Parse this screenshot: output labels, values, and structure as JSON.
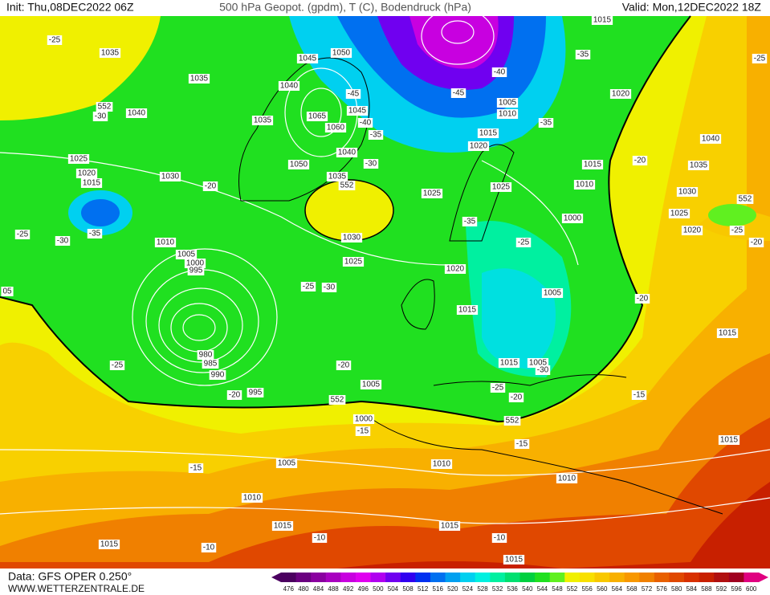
{
  "header": {
    "init": "Init: Thu,08DEC2022 06Z",
    "title": "500 hPa Geopot. (gpdm), T (C), Bodendruck (hPa)",
    "valid": "Valid: Mon,12DEC2022 18Z"
  },
  "footer": {
    "data": "Data: GFS OPER 0.250°",
    "site": "WWW.WETTERZENTRALE.DE"
  },
  "colorbar": {
    "labels": [
      476,
      480,
      484,
      488,
      492,
      496,
      500,
      504,
      508,
      512,
      516,
      520,
      524,
      528,
      532,
      536,
      540,
      544,
      548,
      552,
      556,
      560,
      564,
      568,
      572,
      576,
      580,
      584,
      588,
      592,
      596,
      600
    ],
    "colors": [
      "#4b0060",
      "#6a0080",
      "#8a00a0",
      "#a800c0",
      "#c800e0",
      "#e000f0",
      "#b000f0",
      "#7000f0",
      "#3000f0",
      "#0030f0",
      "#0070f0",
      "#00a0f0",
      "#00d0f0",
      "#00f0e0",
      "#00f0a0",
      "#00e070",
      "#00d040",
      "#20e020",
      "#60f020",
      "#f0f000",
      "#f8e000",
      "#f8c800",
      "#f8b000",
      "#f89800",
      "#f08000",
      "#e86000",
      "#e04800",
      "#d83000",
      "#c82000",
      "#b01010",
      "#a00020",
      "#e00080"
    ]
  },
  "map_labels": [
    "-25",
    "1035",
    "1035",
    "552",
    "-30",
    "1040",
    "1045",
    "1050",
    "1040",
    "-45",
    "1035",
    "1065",
    "1045",
    "1060",
    "-40",
    "-35",
    "1040",
    "-30",
    "1050",
    "1035",
    "552",
    "1025",
    "1020",
    "1015",
    "1030",
    "-20",
    "1025",
    "1025",
    "1015",
    "1010",
    "1000",
    "-35",
    "-25",
    "-30",
    "-35",
    "1030",
    "1010",
    "1005",
    "1000",
    "995",
    "1025",
    "1020",
    "-25",
    "-25",
    "-30",
    "1005",
    "1015",
    "980",
    "985",
    "990",
    "-25",
    "1015",
    "1005",
    "-30",
    "-20",
    "1005",
    "-25",
    "-20",
    "-20",
    "995",
    "552",
    "1000",
    "-15",
    "552",
    "-15",
    "1005",
    "1010",
    "-15",
    "1010",
    "1010",
    "1015",
    "1015",
    "-10",
    "-10",
    "1015",
    "-10",
    "1015",
    "1020",
    "-35",
    "1015",
    "-40",
    "-45",
    "1005",
    "1010",
    "1015",
    "1020",
    "-35",
    "1040",
    "1035",
    "-20",
    "1030",
    "1025",
    "552",
    "1020",
    "-25",
    "-20",
    "-20",
    "1015",
    "-15",
    "1015",
    "05",
    "-25"
  ]
}
